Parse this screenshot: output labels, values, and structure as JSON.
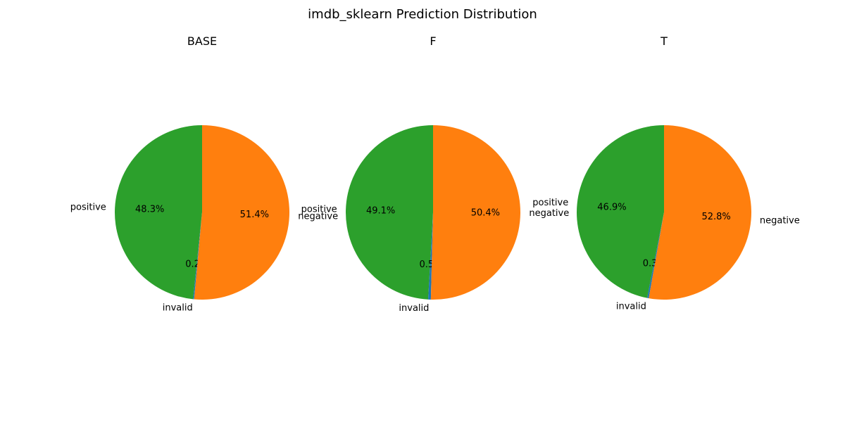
{
  "chart_data": {
    "type": "pie",
    "title": "imdb_sklearn Prediction Distribution",
    "start_angle_deg": 90,
    "direction": "counterclockwise",
    "colors": {
      "negative": "#ff7f0e",
      "positive": "#2ca02c",
      "invalid": "#1f77b4"
    },
    "pies": [
      {
        "title": "BASE",
        "slices": [
          {
            "label": "positive",
            "value": 48.3,
            "pct_label": "48.3%"
          },
          {
            "label": "invalid",
            "value": 0.2,
            "pct_label": "0.2%"
          },
          {
            "label": "negative",
            "value": 51.4,
            "pct_label": "51.4%"
          }
        ]
      },
      {
        "title": "F",
        "slices": [
          {
            "label": "positive",
            "value": 49.1,
            "pct_label": "49.1%"
          },
          {
            "label": "invalid",
            "value": 0.5,
            "pct_label": "0.5%"
          },
          {
            "label": "negative",
            "value": 50.4,
            "pct_label": "50.4%"
          }
        ]
      },
      {
        "title": "T",
        "slices": [
          {
            "label": "positive",
            "value": 46.9,
            "pct_label": "46.9%"
          },
          {
            "label": "invalid",
            "value": 0.3,
            "pct_label": "0.3%"
          },
          {
            "label": "negative",
            "value": 52.8,
            "pct_label": "52.8%"
          }
        ]
      }
    ]
  }
}
